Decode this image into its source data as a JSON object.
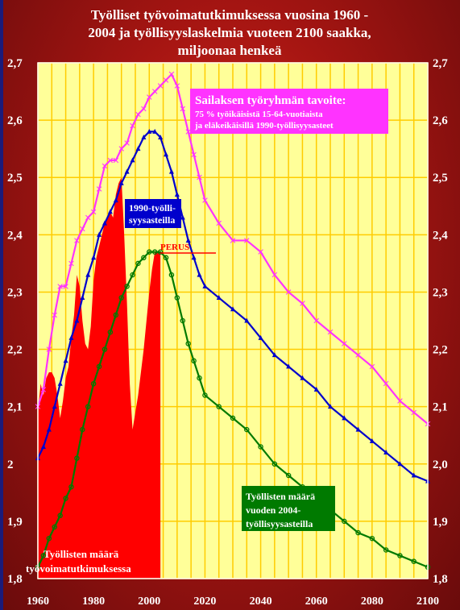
{
  "colors": {
    "plot_bg": "#ffff99",
    "grid": "#ffcc00",
    "actual": "#ff0000",
    "target": "#ff33ff",
    "scenario_1990": "#0000cc",
    "baseline": "#007a00",
    "perus": "#ff0000"
  },
  "chart_data": {
    "type": "line",
    "title_lines": [
      "Työlliset työvoimatutkimuksessa vuosina 1960 -",
      "2004 ja työllisyyslaskelmia vuoteen 2100 saakka,",
      "miljoonaa henkeä"
    ],
    "xlim": [
      1960,
      2100
    ],
    "ylim": [
      1.8,
      2.7
    ],
    "x_ticks": [
      1960,
      1980,
      2000,
      2020,
      2040,
      2060,
      2080,
      2100
    ],
    "y_ticks": [
      "1,8",
      "1,9",
      "2",
      "2,1",
      "2,2",
      "2,3",
      "2,4",
      "2,5",
      "2,6",
      "2,7"
    ],
    "y_ticks_right": [
      "1,8",
      "1,9",
      "2,0",
      "2,1",
      "2,2",
      "2,3",
      "2,4",
      "2,5",
      "2,6",
      "2,7"
    ],
    "grid": true,
    "series": [
      {
        "name": "Työllisten määrä työvoimatutkimuksessa",
        "type": "area",
        "color": "#ff0000",
        "x": [
          1960,
          1961,
          1962,
          1963,
          1964,
          1965,
          1966,
          1967,
          1968,
          1969,
          1970,
          1971,
          1972,
          1973,
          1974,
          1975,
          1976,
          1977,
          1978,
          1979,
          1980,
          1981,
          1982,
          1983,
          1984,
          1985,
          1986,
          1987,
          1988,
          1989,
          1990,
          1991,
          1992,
          1993,
          1994,
          1995,
          1996,
          1997,
          1998,
          1999,
          2000,
          2001,
          2002,
          2003,
          2004
        ],
        "y": [
          2.09,
          2.14,
          2.12,
          2.15,
          2.16,
          2.16,
          2.15,
          2.12,
          2.08,
          2.11,
          2.15,
          2.17,
          2.22,
          2.26,
          2.33,
          2.31,
          2.25,
          2.21,
          2.2,
          2.24,
          2.32,
          2.36,
          2.38,
          2.4,
          2.42,
          2.43,
          2.44,
          2.43,
          2.47,
          2.49,
          2.5,
          2.4,
          2.28,
          2.14,
          2.06,
          2.09,
          2.12,
          2.16,
          2.2,
          2.25,
          2.3,
          2.34,
          2.37,
          2.37,
          2.37
        ]
      },
      {
        "name": "Sailaksen työryhmän tavoite",
        "type": "line",
        "color": "#ff33ff",
        "x": [
          1960,
          1962,
          1964,
          1966,
          1968,
          1970,
          1972,
          1974,
          1976,
          1978,
          1980,
          1982,
          1984,
          1986,
          1988,
          1990,
          1992,
          1994,
          1996,
          1998,
          2000,
          2002,
          2004,
          2006,
          2008,
          2010,
          2012,
          2014,
          2016,
          2018,
          2020,
          2025,
          2030,
          2035,
          2040,
          2045,
          2050,
          2055,
          2060,
          2065,
          2070,
          2075,
          2080,
          2085,
          2090,
          2095,
          2100
        ],
        "y": [
          2.1,
          2.13,
          2.2,
          2.26,
          2.31,
          2.31,
          2.35,
          2.39,
          2.41,
          2.43,
          2.44,
          2.48,
          2.52,
          2.53,
          2.53,
          2.55,
          2.56,
          2.59,
          2.61,
          2.62,
          2.64,
          2.65,
          2.66,
          2.67,
          2.68,
          2.66,
          2.62,
          2.58,
          2.54,
          2.5,
          2.46,
          2.42,
          2.39,
          2.39,
          2.37,
          2.33,
          2.3,
          2.28,
          2.25,
          2.23,
          2.21,
          2.19,
          2.17,
          2.14,
          2.11,
          2.09,
          2.07
        ]
      },
      {
        "name": "1990-työllisyysasteilla",
        "type": "line",
        "color": "#0000cc",
        "x": [
          1960,
          1962,
          1964,
          1966,
          1968,
          1970,
          1972,
          1974,
          1976,
          1978,
          1980,
          1982,
          1984,
          1986,
          1988,
          1990,
          1992,
          1994,
          1996,
          1998,
          2000,
          2002,
          2004,
          2006,
          2008,
          2010,
          2012,
          2014,
          2016,
          2018,
          2020,
          2025,
          2030,
          2035,
          2040,
          2045,
          2050,
          2055,
          2060,
          2065,
          2070,
          2075,
          2080,
          2085,
          2090,
          2095,
          2100
        ],
        "y": [
          2.01,
          2.03,
          2.06,
          2.1,
          2.14,
          2.18,
          2.22,
          2.25,
          2.29,
          2.33,
          2.36,
          2.4,
          2.42,
          2.44,
          2.46,
          2.49,
          2.51,
          2.53,
          2.55,
          2.57,
          2.58,
          2.58,
          2.57,
          2.54,
          2.51,
          2.47,
          2.43,
          2.39,
          2.36,
          2.33,
          2.31,
          2.29,
          2.27,
          2.25,
          2.22,
          2.19,
          2.17,
          2.15,
          2.13,
          2.1,
          2.08,
          2.06,
          2.04,
          2.02,
          2.0,
          1.98,
          1.97
        ]
      },
      {
        "name": "Työllisten määrä vuoden 2004-työllisyysasteilla",
        "type": "line",
        "color": "#007a00",
        "x": [
          1960,
          1962,
          1964,
          1966,
          1968,
          1970,
          1972,
          1974,
          1976,
          1978,
          1980,
          1982,
          1984,
          1986,
          1988,
          1990,
          1992,
          1994,
          1996,
          1998,
          2000,
          2002,
          2004,
          2006,
          2008,
          2010,
          2012,
          2014,
          2016,
          2018,
          2020,
          2025,
          2030,
          2035,
          2040,
          2045,
          2050,
          2055,
          2060,
          2065,
          2070,
          2075,
          2080,
          2085,
          2090,
          2095,
          2100
        ],
        "y": [
          1.82,
          1.84,
          1.87,
          1.89,
          1.91,
          1.94,
          1.96,
          2.01,
          2.06,
          2.1,
          2.14,
          2.17,
          2.2,
          2.23,
          2.26,
          2.29,
          2.31,
          2.33,
          2.35,
          2.36,
          2.37,
          2.37,
          2.37,
          2.36,
          2.33,
          2.29,
          2.25,
          2.21,
          2.18,
          2.15,
          2.12,
          2.1,
          2.08,
          2.06,
          2.03,
          2.0,
          1.98,
          1.96,
          1.94,
          1.92,
          1.9,
          1.88,
          1.87,
          1.85,
          1.84,
          1.83,
          1.82
        ]
      }
    ],
    "annotations": {
      "target_title": "Sailaksen työryhmän tavoite:",
      "target_line1": "75 % työikäisistä 15-64-vuotiaista",
      "target_line2": "ja eläkeikäisillä 1990-työllisyysasteet",
      "scenario_1990_line1": "1990-työlli-",
      "scenario_1990_line2": "syysasteilla",
      "perus": "PERUS",
      "baseline_line1": "Työllisten määrä",
      "baseline_line2": "vuoden 2004-",
      "baseline_line3": "työllisyysasteilla",
      "actual_line1": "Työllisten määrä",
      "actual_line2": "työvoimatutkimuksessa"
    }
  }
}
